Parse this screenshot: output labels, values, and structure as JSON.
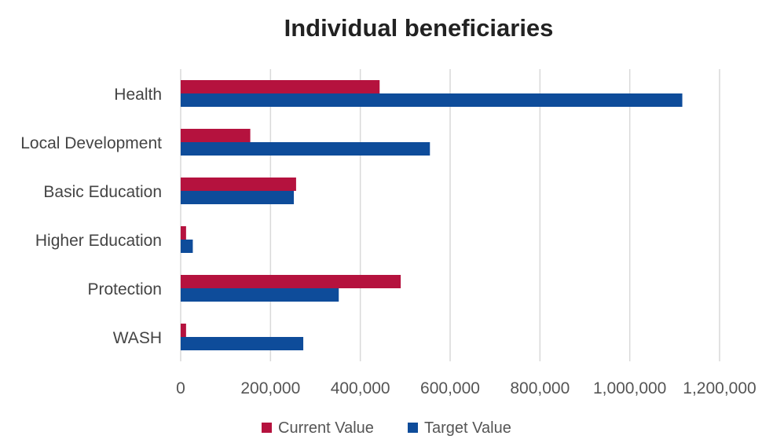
{
  "chart_data": {
    "type": "bar",
    "orientation": "horizontal",
    "title": "Individual beneficiaries",
    "categories": [
      "Health",
      "Local Development",
      "Basic Education",
      "Higher Education",
      "Protection",
      "WASH"
    ],
    "series": [
      {
        "name": "Current Value",
        "color": "#b5123e",
        "values": [
          443000,
          155000,
          257000,
          12000,
          490000,
          12000
        ]
      },
      {
        "name": "Target Value",
        "color": "#0e4c9a",
        "values": [
          1117000,
          555000,
          252000,
          27000,
          352000,
          273000
        ]
      }
    ],
    "xlim": [
      0,
      1200000
    ],
    "xticks": [
      0,
      200000,
      400000,
      600000,
      800000,
      1000000,
      1200000
    ],
    "xtick_labels": [
      "0",
      "200,000",
      "400,000",
      "600,000",
      "800,000",
      "1,000,000",
      "1,200,000"
    ],
    "grid": true,
    "legend_position": "bottom"
  }
}
